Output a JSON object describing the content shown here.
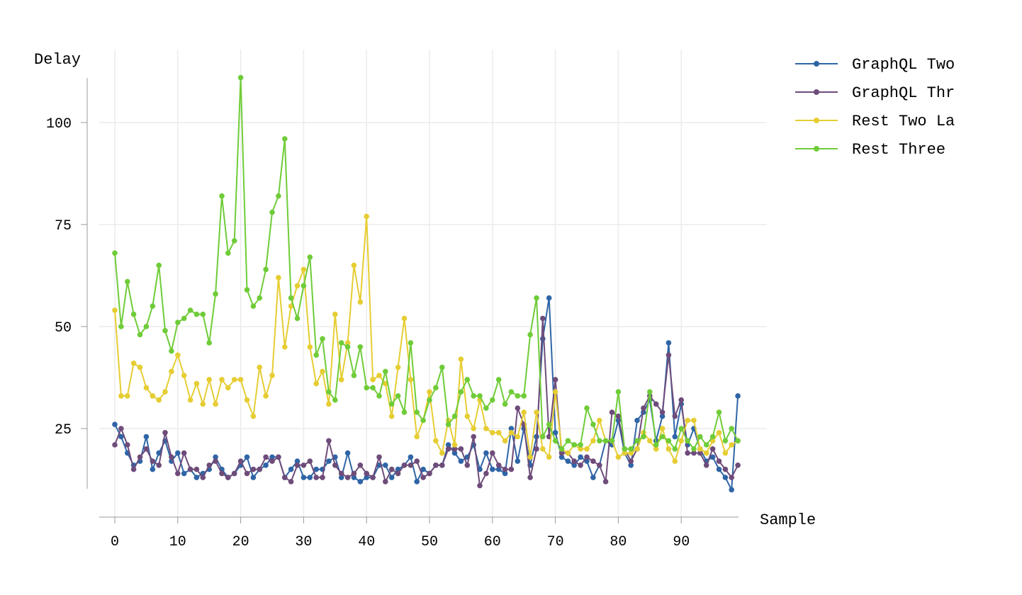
{
  "chart_data": {
    "type": "line",
    "xlabel": "Sample",
    "ylabel": "Delay",
    "x_ticks": [
      0,
      10,
      20,
      30,
      40,
      50,
      60,
      70,
      80,
      90
    ],
    "y_ticks": [
      25,
      50,
      75,
      100
    ],
    "xlim": [
      -4.5,
      104
    ],
    "ylim": [
      3,
      114
    ],
    "grid": true,
    "legend_position": "top-right",
    "series": [
      {
        "name": "GraphQL Two",
        "color": "#2f65a6",
        "values": [
          26,
          23,
          19,
          16,
          17,
          23,
          15,
          19,
          22,
          17,
          19,
          14,
          15,
          13,
          14,
          15,
          18,
          15,
          13,
          14,
          16,
          18,
          13,
          15,
          16,
          18,
          18,
          13,
          15,
          17,
          13,
          13,
          15,
          15,
          17,
          18,
          13,
          19,
          13,
          12,
          13,
          13,
          16,
          16,
          13,
          15,
          16,
          18,
          12,
          15,
          14,
          16,
          16,
          21,
          19,
          17,
          18,
          21,
          15,
          19,
          15,
          15,
          14,
          25,
          17,
          25,
          16,
          23,
          47,
          57,
          24,
          18,
          17,
          16,
          18,
          17,
          13,
          16,
          22,
          21,
          27,
          19,
          16,
          27,
          29,
          32,
          22,
          28,
          46,
          23,
          31,
          21,
          25,
          20,
          17,
          18,
          15,
          13,
          10,
          33
        ]
      },
      {
        "name": "GraphQL Thr",
        "color": "#6e4c7a",
        "values": [
          21,
          25,
          21,
          15,
          18,
          20,
          17,
          16,
          24,
          18,
          14,
          19,
          15,
          15,
          13,
          16,
          17,
          14,
          13,
          14,
          17,
          14,
          15,
          15,
          18,
          17,
          18,
          13,
          12,
          16,
          16,
          17,
          13,
          13,
          22,
          16,
          14,
          13,
          14,
          16,
          14,
          13,
          18,
          12,
          15,
          14,
          16,
          16,
          17,
          13,
          14,
          16,
          16,
          20,
          20,
          20,
          16,
          23,
          11,
          14,
          19,
          16,
          15,
          15,
          30,
          26,
          13,
          20,
          52,
          23,
          37,
          19,
          19,
          17,
          16,
          18,
          17,
          16,
          12,
          29,
          28,
          20,
          17,
          20,
          30,
          33,
          31,
          29,
          43,
          28,
          32,
          19,
          19,
          19,
          16,
          20,
          17,
          15,
          13,
          16
        ]
      },
      {
        "name": "Rest Two La",
        "color": "#e6cd33",
        "values": [
          54,
          33,
          33,
          41,
          40,
          35,
          33,
          32,
          34,
          39,
          43,
          38,
          32,
          36,
          31,
          37,
          31,
          37,
          35,
          37,
          37,
          32,
          28,
          40,
          33,
          38,
          62,
          45,
          55,
          60,
          64,
          45,
          36,
          39,
          31,
          53,
          37,
          46,
          65,
          56,
          77,
          37,
          38,
          36,
          28,
          40,
          52,
          37,
          23,
          27,
          34,
          22,
          19,
          27,
          21,
          42,
          28,
          25,
          32,
          25,
          24,
          24,
          22,
          24,
          23,
          29,
          18,
          29,
          20,
          18,
          34,
          20,
          19,
          21,
          20,
          20,
          22,
          27,
          22,
          22,
          18,
          19,
          19,
          20,
          24,
          22,
          20,
          25,
          20,
          17,
          22,
          27,
          27,
          20,
          19,
          22,
          24,
          19,
          21,
          22
        ]
      },
      {
        "name": "Rest Three",
        "color": "#6fcc38",
        "values": [
          68,
          50,
          61,
          53,
          48,
          50,
          55,
          65,
          49,
          44,
          51,
          52,
          54,
          53,
          53,
          46,
          58,
          82,
          68,
          71,
          111,
          59,
          55,
          57,
          64,
          78,
          82,
          96,
          57,
          52,
          60,
          67,
          43,
          47,
          34,
          32,
          46,
          45,
          38,
          45,
          35,
          35,
          33,
          39,
          31,
          33,
          29,
          46,
          29,
          27,
          32,
          35,
          40,
          26,
          28,
          34,
          37,
          33,
          33,
          30,
          32,
          37,
          31,
          34,
          33,
          33,
          48,
          57,
          23,
          26,
          22,
          20,
          22,
          21,
          21,
          30,
          26,
          22,
          22,
          22,
          34,
          20,
          20,
          22,
          23,
          34,
          21,
          23,
          22,
          20,
          25,
          22,
          20,
          23,
          21,
          23,
          29,
          22,
          25,
          22
        ]
      }
    ]
  }
}
